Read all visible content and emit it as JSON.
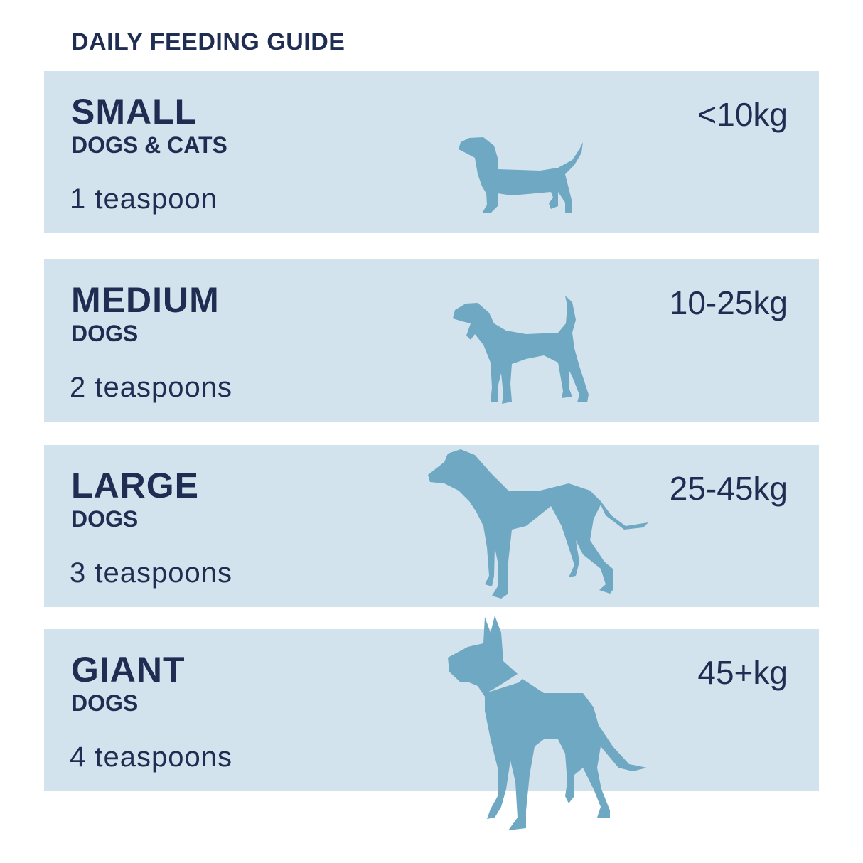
{
  "title": "DAILY FEEDING GUIDE",
  "colors": {
    "band": "#d2e3ed",
    "text": "#1f2d52",
    "dog": "#6ea8c3"
  },
  "rows": [
    {
      "size": "SMALL",
      "sub": "DOGS & CATS",
      "amount": "1 teaspoon",
      "weight": "<10kg",
      "icon": "dachshund-icon"
    },
    {
      "size": "MEDIUM",
      "sub": "DOGS",
      "amount": "2 teaspoons",
      "weight": "10-25kg",
      "icon": "beagle-icon"
    },
    {
      "size": "LARGE",
      "sub": "DOGS",
      "amount": "3 teaspoons",
      "weight": "25-45kg",
      "icon": "greyhound-icon"
    },
    {
      "size": "GIANT",
      "sub": "DOGS",
      "amount": "4 teaspoons",
      "weight": "45+kg",
      "icon": "great-dane-icon"
    }
  ]
}
